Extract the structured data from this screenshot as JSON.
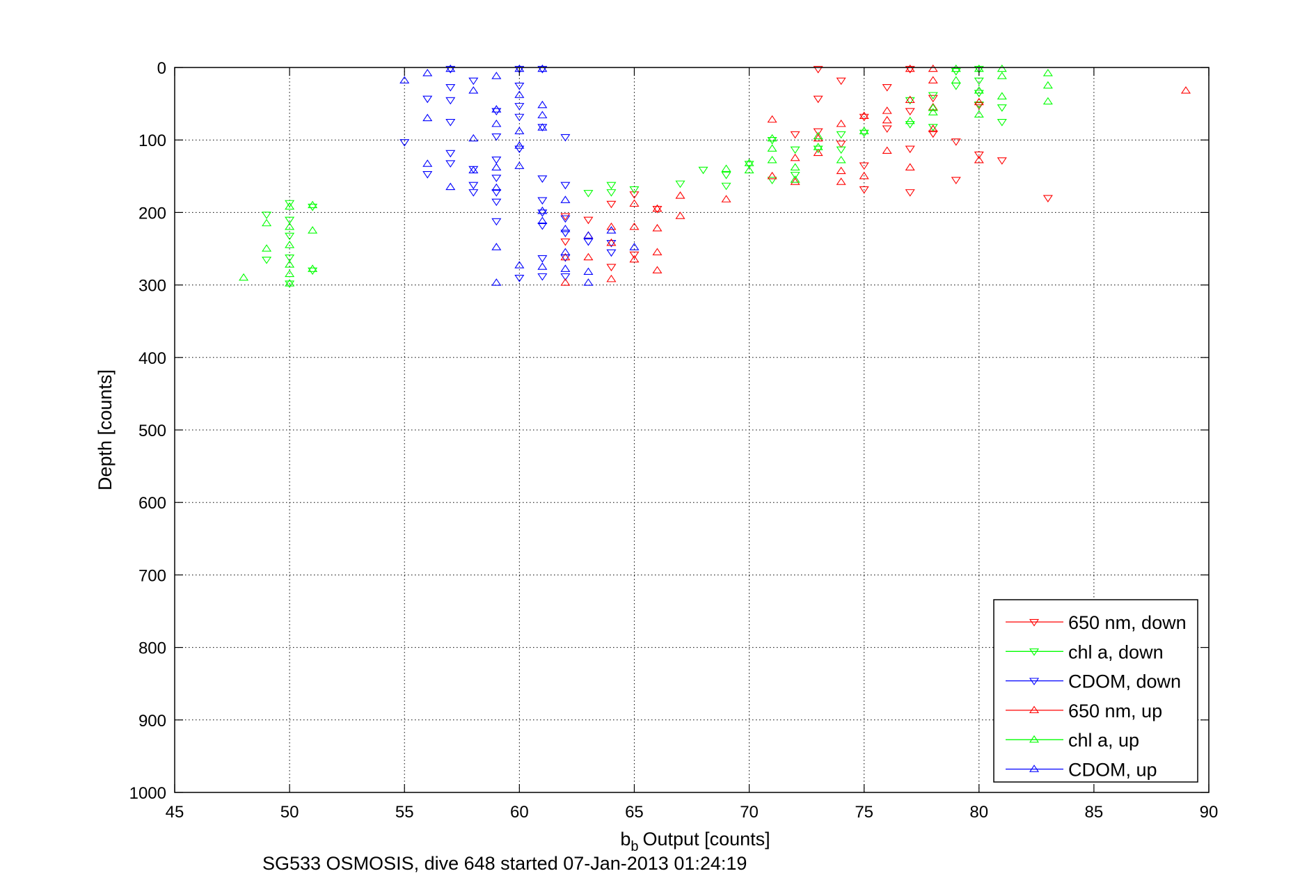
{
  "chart_data": {
    "type": "scatter",
    "title": "",
    "xlabel": "Output [counts]",
    "xlabel_prefix": "b",
    "xlabel_subscript": "b",
    "ylabel": "Depth [counts]",
    "footer": "SG533 OSMOSIS, dive 648 started 07-Jan-2013 01:24:19",
    "xlim": [
      45,
      90
    ],
    "ylim": [
      0,
      1000
    ],
    "y_reversed": true,
    "xticks": [
      45,
      50,
      55,
      60,
      65,
      70,
      75,
      80,
      85,
      90
    ],
    "yticks": [
      0,
      100,
      200,
      300,
      400,
      500,
      600,
      700,
      800,
      900,
      1000
    ],
    "grid": true,
    "legend_position": "bottom-right",
    "series": [
      {
        "name": "650 nm, down",
        "color": "#ff0000",
        "marker": "triangle-down",
        "points": [
          [
            62,
            205
          ],
          [
            62,
            240
          ],
          [
            63,
            210
          ],
          [
            64,
            188
          ],
          [
            64,
            275
          ],
          [
            65,
            175
          ],
          [
            65,
            258
          ],
          [
            66,
            195
          ],
          [
            72,
            92
          ],
          [
            73,
            2
          ],
          [
            73,
            43
          ],
          [
            73,
            88
          ],
          [
            74,
            18
          ],
          [
            74,
            105
          ],
          [
            75,
            68
          ],
          [
            75,
            135
          ],
          [
            75,
            168
          ],
          [
            76,
            27
          ],
          [
            76,
            84
          ],
          [
            77,
            2
          ],
          [
            77,
            60
          ],
          [
            77,
            112
          ],
          [
            77,
            172
          ],
          [
            78,
            42
          ],
          [
            78,
            91
          ],
          [
            79,
            102
          ],
          [
            79,
            155
          ],
          [
            80,
            52
          ],
          [
            80,
            120
          ],
          [
            81,
            128
          ],
          [
            83,
            180
          ]
        ]
      },
      {
        "name": "chl a, down",
        "color": "#00ff00",
        "marker": "triangle-down",
        "points": [
          [
            49,
            203
          ],
          [
            49,
            265
          ],
          [
            50,
            187
          ],
          [
            50,
            210
          ],
          [
            50,
            232
          ],
          [
            50,
            262
          ],
          [
            50,
            298
          ],
          [
            51,
            192
          ],
          [
            51,
            280
          ],
          [
            63,
            173
          ],
          [
            64,
            162
          ],
          [
            64,
            172
          ],
          [
            65,
            168
          ],
          [
            67,
            160
          ],
          [
            68,
            141
          ],
          [
            69,
            148
          ],
          [
            69,
            163
          ],
          [
            70,
            133
          ],
          [
            71,
            100
          ],
          [
            71,
            155
          ],
          [
            72,
            113
          ],
          [
            72,
            148
          ],
          [
            73,
            112
          ],
          [
            74,
            92
          ],
          [
            74,
            113
          ],
          [
            75,
            90
          ],
          [
            77,
            45
          ],
          [
            77,
            78
          ],
          [
            78,
            38
          ],
          [
            78,
            82
          ],
          [
            79,
            5
          ],
          [
            79,
            25
          ],
          [
            80,
            2
          ],
          [
            80,
            18
          ],
          [
            80,
            35
          ],
          [
            80,
            51
          ],
          [
            81,
            55
          ],
          [
            81,
            75
          ]
        ]
      },
      {
        "name": "CDOM, down",
        "color": "#0000ff",
        "marker": "triangle-down",
        "points": [
          [
            55,
            103
          ],
          [
            56,
            43
          ],
          [
            56,
            147
          ],
          [
            57,
            2
          ],
          [
            57,
            27
          ],
          [
            57,
            45
          ],
          [
            57,
            75
          ],
          [
            57,
            118
          ],
          [
            57,
            132
          ],
          [
            58,
            18
          ],
          [
            58,
            140
          ],
          [
            58,
            162
          ],
          [
            58,
            172
          ],
          [
            59,
            60
          ],
          [
            59,
            95
          ],
          [
            59,
            127
          ],
          [
            59,
            152
          ],
          [
            59,
            172
          ],
          [
            59,
            185
          ],
          [
            59,
            212
          ],
          [
            60,
            2
          ],
          [
            60,
            25
          ],
          [
            60,
            53
          ],
          [
            60,
            68
          ],
          [
            60,
            112
          ],
          [
            60,
            290
          ],
          [
            61,
            2
          ],
          [
            61,
            82
          ],
          [
            61,
            153
          ],
          [
            61,
            183
          ],
          [
            61,
            200
          ],
          [
            61,
            218
          ],
          [
            61,
            263
          ],
          [
            61,
            288
          ],
          [
            62,
            96
          ],
          [
            62,
            162
          ],
          [
            62,
            208
          ],
          [
            62,
            228
          ],
          [
            62,
            262
          ],
          [
            62,
            288
          ],
          [
            63,
            240
          ],
          [
            64,
            242
          ],
          [
            64,
            255
          ]
        ]
      },
      {
        "name": "650 nm, up",
        "color": "#ff0000",
        "marker": "triangle-up",
        "points": [
          [
            62,
            262
          ],
          [
            62,
            297
          ],
          [
            63,
            232
          ],
          [
            63,
            262
          ],
          [
            64,
            220
          ],
          [
            64,
            242
          ],
          [
            64,
            292
          ],
          [
            65,
            188
          ],
          [
            65,
            220
          ],
          [
            65,
            265
          ],
          [
            66,
            195
          ],
          [
            66,
            222
          ],
          [
            66,
            255
          ],
          [
            66,
            280
          ],
          [
            67,
            177
          ],
          [
            67,
            205
          ],
          [
            69,
            182
          ],
          [
            71,
            72
          ],
          [
            71,
            150
          ],
          [
            72,
            125
          ],
          [
            72,
            158
          ],
          [
            73,
            98
          ],
          [
            73,
            118
          ],
          [
            74,
            78
          ],
          [
            74,
            143
          ],
          [
            74,
            158
          ],
          [
            75,
            67
          ],
          [
            75,
            150
          ],
          [
            76,
            60
          ],
          [
            76,
            73
          ],
          [
            76,
            115
          ],
          [
            77,
            45
          ],
          [
            77,
            138
          ],
          [
            77,
            2
          ],
          [
            78,
            2
          ],
          [
            78,
            18
          ],
          [
            78,
            55
          ],
          [
            78,
            85
          ],
          [
            80,
            48
          ],
          [
            80,
            128
          ],
          [
            89,
            32
          ]
        ]
      },
      {
        "name": "chl a, up",
        "color": "#00ff00",
        "marker": "triangle-up",
        "points": [
          [
            48,
            290
          ],
          [
            49,
            215
          ],
          [
            49,
            250
          ],
          [
            50,
            192
          ],
          [
            50,
            220
          ],
          [
            50,
            245
          ],
          [
            50,
            272
          ],
          [
            50,
            285
          ],
          [
            50,
            298
          ],
          [
            51,
            190
          ],
          [
            51,
            225
          ],
          [
            51,
            278
          ],
          [
            69,
            140
          ],
          [
            70,
            132
          ],
          [
            70,
            142
          ],
          [
            71,
            98
          ],
          [
            71,
            112
          ],
          [
            71,
            128
          ],
          [
            72,
            138
          ],
          [
            72,
            155
          ],
          [
            73,
            95
          ],
          [
            73,
            110
          ],
          [
            74,
            128
          ],
          [
            75,
            88
          ],
          [
            77,
            74
          ],
          [
            78,
            56
          ],
          [
            78,
            62
          ],
          [
            79,
            2
          ],
          [
            79,
            18
          ],
          [
            80,
            2
          ],
          [
            80,
            32
          ],
          [
            80,
            65
          ],
          [
            81,
            2
          ],
          [
            81,
            12
          ],
          [
            81,
            40
          ],
          [
            83,
            8
          ],
          [
            83,
            25
          ],
          [
            83,
            47
          ]
        ]
      },
      {
        "name": "CDOM, up",
        "color": "#0000ff",
        "marker": "triangle-up",
        "points": [
          [
            55,
            18
          ],
          [
            56,
            8
          ],
          [
            56,
            70
          ],
          [
            56,
            133
          ],
          [
            57,
            2
          ],
          [
            57,
            165
          ],
          [
            58,
            32
          ],
          [
            58,
            98
          ],
          [
            58,
            142
          ],
          [
            59,
            12
          ],
          [
            59,
            58
          ],
          [
            59,
            78
          ],
          [
            59,
            138
          ],
          [
            59,
            166
          ],
          [
            59,
            248
          ],
          [
            59,
            297
          ],
          [
            60,
            2
          ],
          [
            60,
            38
          ],
          [
            60,
            88
          ],
          [
            60,
            108
          ],
          [
            60,
            136
          ],
          [
            60,
            273
          ],
          [
            61,
            2
          ],
          [
            61,
            52
          ],
          [
            61,
            66
          ],
          [
            61,
            83
          ],
          [
            61,
            198
          ],
          [
            61,
            212
          ],
          [
            61,
            275
          ],
          [
            62,
            183
          ],
          [
            62,
            223
          ],
          [
            62,
            255
          ],
          [
            62,
            278
          ],
          [
            63,
            232
          ],
          [
            63,
            282
          ],
          [
            63,
            297
          ],
          [
            64,
            225
          ],
          [
            65,
            248
          ]
        ]
      }
    ]
  }
}
